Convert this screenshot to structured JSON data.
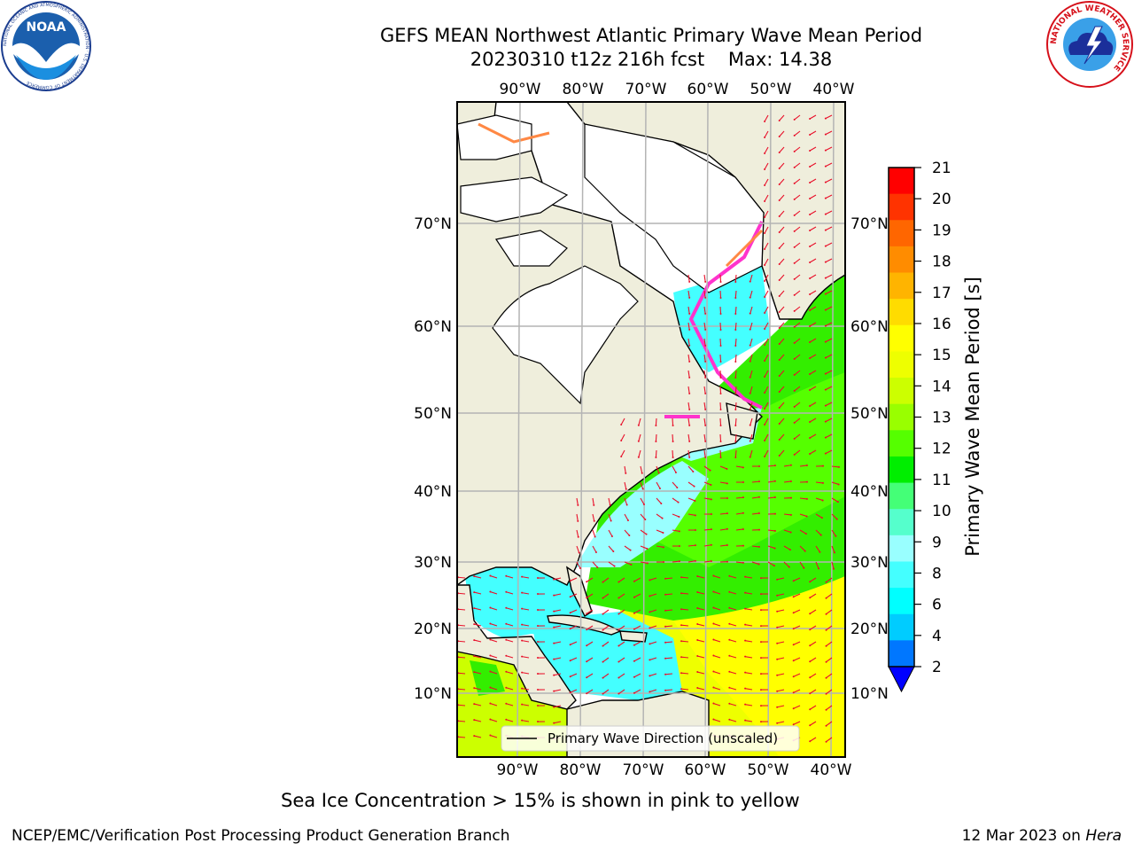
{
  "title": {
    "line1": "GEFS MEAN Northwest Atlantic Primary Wave Mean Period",
    "line2": "20230310 t12z 216h fcst    Max: 14.38"
  },
  "logos": {
    "left": {
      "icon": "noaa-logo-icon",
      "text": "NOAA",
      "ring_text": "NATIONAL OCEANIC AND ATMOSPHERIC ADMINISTRATION · U.S. DEPARTMENT OF COMMERCE"
    },
    "right": {
      "icon": "nws-logo-icon",
      "ring_text": "NATIONAL WEATHER SERVICE"
    }
  },
  "map": {
    "lon_labels": [
      "90°W",
      "80°W",
      "70°W",
      "60°W",
      "50°W",
      "40°W"
    ],
    "lat_labels": [
      "70°N",
      "60°N",
      "50°N",
      "40°N",
      "30°N",
      "20°N",
      "10°N"
    ],
    "legend_label": "Primary Wave Direction (unscaled)",
    "colors": {
      "land": "#efeedc",
      "ice_free_white": "#ffffff",
      "coast": "#000000",
      "grid": "#b4b4b4",
      "arrow": "#e8102a",
      "sea_ice_pink": "#ff33cc"
    }
  },
  "colorbar": {
    "label": "Primary Wave Mean Period [s]",
    "ticks": [
      "21",
      "20",
      "19",
      "18",
      "17",
      "16",
      "15",
      "14",
      "13",
      "12",
      "11",
      "10",
      "9",
      "8",
      "6",
      "4",
      "2"
    ],
    "colors_top_to_bottom": [
      "#ff0000",
      "#ff3300",
      "#ff6600",
      "#ff8c00",
      "#ffb400",
      "#ffdc00",
      "#ffff00",
      "#eeff00",
      "#ccff00",
      "#99ff00",
      "#55ff00",
      "#00ee00",
      "#44ff77",
      "#55ffcc",
      "#99ffff",
      "#44ffff",
      "#00ffff",
      "#00ccff",
      "#0077ff"
    ],
    "extend_color": "#0000ff"
  },
  "notes": {
    "sea_ice": "Sea Ice Concentration > 15% is shown in pink to yellow",
    "producer": "NCEP/EMC/Verification Post Processing Product Generation Branch",
    "date": "12 Mar 2023 on ",
    "machine": "Hera"
  }
}
